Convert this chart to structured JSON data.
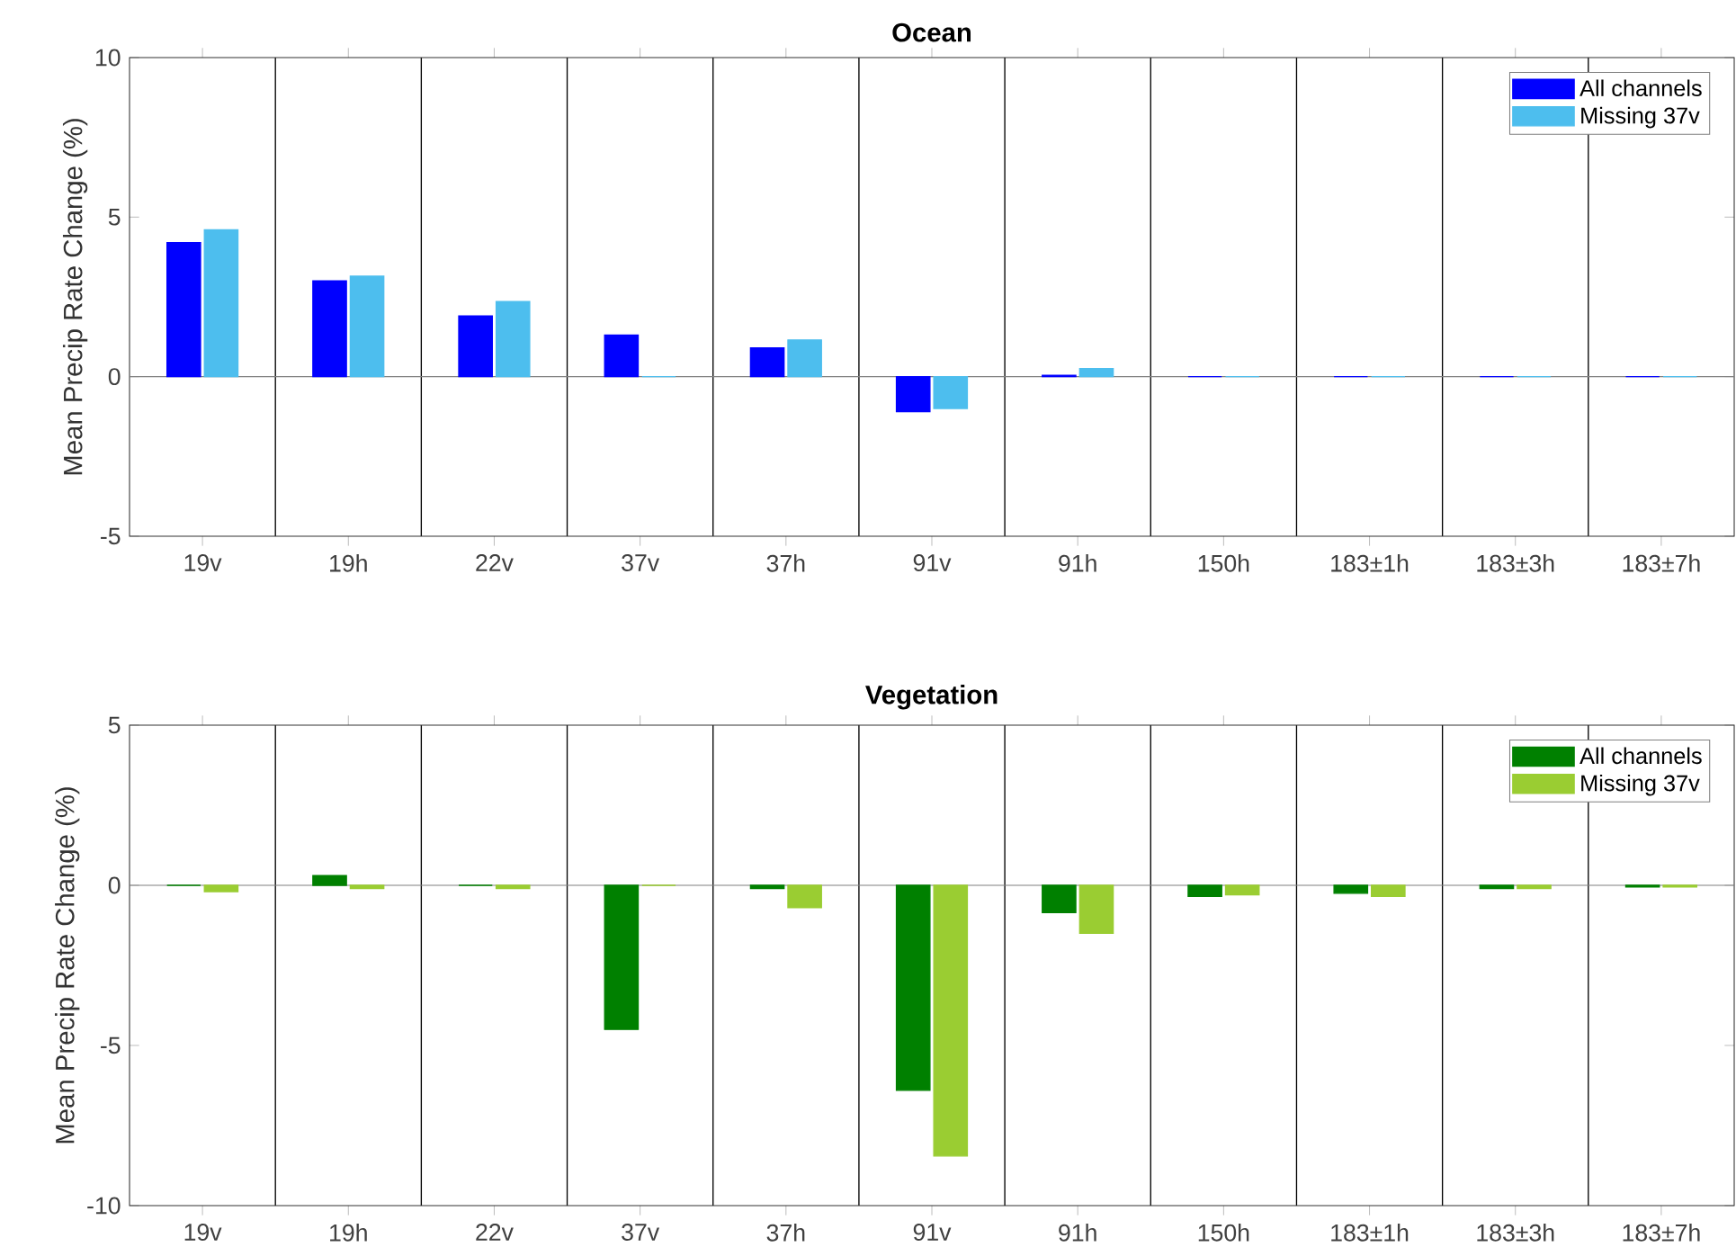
{
  "chart_data": [
    {
      "type": "bar",
      "title": "Ocean",
      "ylabel": "Mean Precip Rate Change (%)",
      "categories": [
        "19v",
        "19h",
        "22v",
        "37v",
        "37h",
        "91v",
        "91h",
        "150h",
        "183±1h",
        "183±3h",
        "183±7h"
      ],
      "series": [
        {
          "name": "All channels",
          "color": "#0000ff",
          "values": [
            4.2,
            3.0,
            1.9,
            1.3,
            0.9,
            -1.1,
            0.04,
            0,
            0,
            0,
            0
          ]
        },
        {
          "name": "Missing 37v",
          "color": "#4dbeee",
          "values": [
            4.6,
            3.15,
            2.35,
            0,
            1.15,
            -1.0,
            0.25,
            0,
            0,
            0,
            0
          ]
        }
      ],
      "ylim": [
        -5,
        10
      ],
      "yticks": [
        -5,
        0,
        5,
        10
      ],
      "grid": "x",
      "legend": "top right",
      "ref_lines": [
        {
          "axis": "y",
          "value": 0,
          "color": "#808080"
        }
      ]
    },
    {
      "type": "bar",
      "title": "Vegetation",
      "ylabel": "Mean Precip Rate Change (%)",
      "categories": [
        "19v",
        "19h",
        "22v",
        "37v",
        "37h",
        "91v",
        "91h",
        "150h",
        "183±1h",
        "183±3h",
        "183±7h"
      ],
      "series": [
        {
          "name": "All channels",
          "color": "#008000",
          "values": [
            0,
            0.3,
            0,
            -4.5,
            -0.1,
            -6.4,
            -0.85,
            -0.35,
            -0.25,
            -0.1,
            -0.05
          ]
        },
        {
          "name": "Missing 37v",
          "color": "#9acd32",
          "values": [
            -0.2,
            -0.1,
            -0.1,
            0,
            -0.7,
            -8.45,
            -1.5,
            -0.3,
            -0.35,
            -0.1,
            -0.05
          ]
        }
      ],
      "ylim": [
        -10,
        5
      ],
      "yticks": [
        -10,
        -5,
        0,
        5
      ],
      "grid": "x",
      "legend": "top right",
      "ref_lines": [
        {
          "axis": "y",
          "value": 0,
          "color": "#808080"
        }
      ]
    }
  ]
}
